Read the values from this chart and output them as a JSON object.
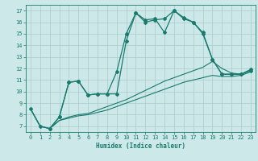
{
  "xlabel": "Humidex (Indice chaleur)",
  "bg_color": "#cce8e8",
  "grid_color": "#aacccc",
  "line_color": "#1a7a6e",
  "xlim": [
    -0.5,
    23.5
  ],
  "ylim": [
    6.5,
    17.5
  ],
  "xticks": [
    0,
    1,
    2,
    3,
    4,
    5,
    6,
    7,
    8,
    9,
    10,
    11,
    12,
    13,
    14,
    15,
    16,
    17,
    18,
    19,
    20,
    21,
    22,
    23
  ],
  "yticks": [
    7,
    8,
    9,
    10,
    11,
    12,
    13,
    14,
    15,
    16,
    17
  ],
  "line1_x": [
    0,
    1,
    2,
    3,
    4,
    5,
    6,
    7,
    8,
    9,
    10,
    11,
    12,
    13,
    14,
    15,
    16,
    17,
    18,
    19,
    20,
    21,
    22,
    23
  ],
  "line1_y": [
    8.5,
    7.0,
    6.8,
    7.5,
    7.7,
    7.9,
    8.0,
    8.2,
    8.4,
    8.7,
    9.0,
    9.3,
    9.6,
    9.9,
    10.2,
    10.5,
    10.8,
    11.0,
    11.2,
    11.4,
    11.3,
    11.3,
    11.4,
    11.7
  ],
  "line2_x": [
    0,
    1,
    2,
    3,
    4,
    5,
    6,
    7,
    8,
    9,
    10,
    11,
    12,
    13,
    14,
    15,
    16,
    17,
    18,
    19,
    20,
    21,
    22,
    23
  ],
  "line2_y": [
    8.5,
    7.0,
    6.8,
    7.5,
    7.8,
    8.0,
    8.1,
    8.4,
    8.7,
    9.0,
    9.3,
    9.7,
    10.1,
    10.5,
    10.9,
    11.2,
    11.5,
    11.8,
    12.1,
    12.6,
    12.0,
    11.6,
    11.5,
    11.9
  ],
  "line3_x": [
    0,
    1,
    2,
    3,
    4,
    5,
    6,
    7,
    8,
    9,
    10,
    11,
    12,
    13,
    14,
    15,
    16,
    17,
    18,
    19,
    20,
    21,
    22,
    23
  ],
  "line3_y": [
    8.5,
    7.0,
    6.8,
    7.8,
    10.8,
    10.9,
    9.7,
    9.8,
    9.8,
    11.7,
    15.0,
    16.8,
    16.0,
    16.2,
    16.3,
    17.0,
    16.3,
    16.0,
    15.0,
    12.8,
    11.5,
    11.5,
    11.5,
    11.8
  ],
  "line4_x": [
    2,
    3,
    4,
    5,
    6,
    7,
    8,
    9,
    10,
    11,
    12,
    13,
    14,
    15,
    16,
    17,
    18,
    19,
    20,
    21,
    22,
    23
  ],
  "line4_y": [
    6.8,
    7.8,
    10.8,
    10.9,
    9.7,
    9.8,
    9.8,
    9.8,
    14.4,
    16.8,
    16.2,
    16.3,
    15.1,
    17.0,
    16.4,
    16.0,
    15.1,
    12.8,
    11.5,
    11.5,
    11.5,
    11.9
  ]
}
